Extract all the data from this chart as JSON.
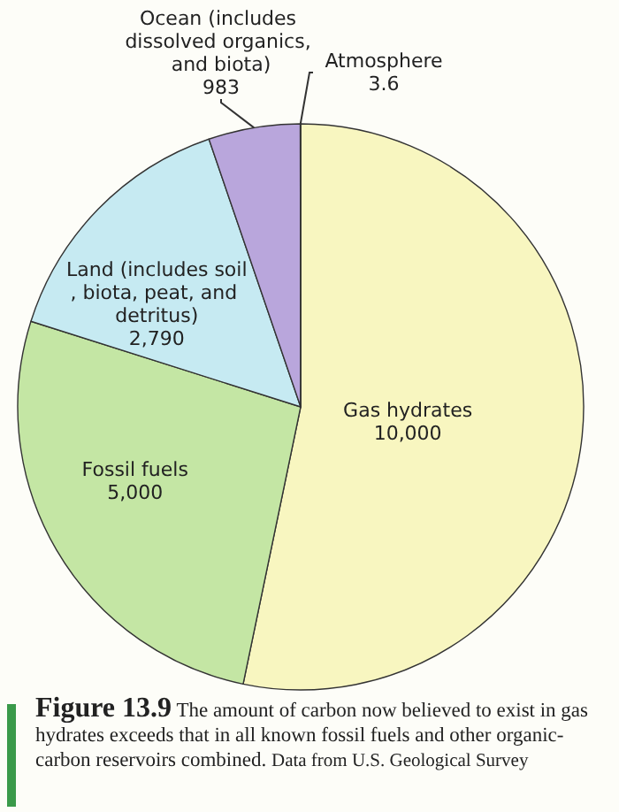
{
  "chart_data": {
    "type": "pie",
    "title": "Figure 13.9",
    "categories": [
      "Gas hydrates",
      "Fossil fuels",
      "Land (includes soil, biota, peat, and detritus)",
      "Ocean (includes dissolved organics, and biota)",
      "Atmosphere"
    ],
    "values": [
      10000,
      5000,
      2790,
      983,
      3.6
    ],
    "value_labels": [
      "10,000",
      "5,000",
      "2,790",
      "983",
      "3.6"
    ],
    "colors": [
      "#f8f6c0",
      "#c4e6a4",
      "#c6eaf2",
      "#b9a6dc",
      "#b8a888"
    ],
    "annotations": [
      "The amount of carbon now believed to exist in gas hydrates exceeds that in all known fossil fuels and other organic-carbon reservoirs combined.",
      "Data from U.S. Geological Survey"
    ],
    "legend": false
  }
}
